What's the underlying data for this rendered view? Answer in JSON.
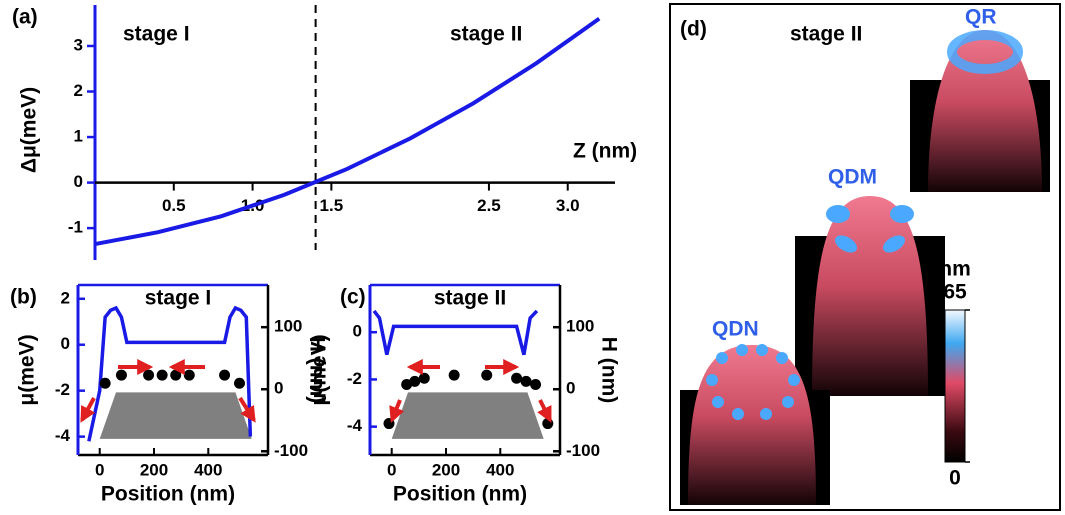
{
  "chart_data": [
    {
      "type": "line",
      "panel": "(a)",
      "annotations": [
        "stage I",
        "stage II"
      ],
      "xlabel": "Z (nm)",
      "ylabel": "Δμ(meV)",
      "x": [
        0,
        0.4,
        0.8,
        1.2,
        1.6,
        2.0,
        2.4,
        2.8,
        3.2
      ],
      "values": [
        -1.35,
        -1.09,
        -0.74,
        -0.27,
        0.3,
        0.97,
        1.74,
        2.62,
        3.6
      ],
      "color": "#1a1ae6",
      "xlim": [
        0,
        3.3
      ],
      "ylim": [
        -1.7,
        3.9
      ],
      "xticks": [
        0.5,
        {
          "value": 1,
          "label": "1.0"
        },
        1.5,
        2.5,
        {
          "value": 3,
          "label": "3.0"
        }
      ],
      "yticks": [
        -1,
        0,
        1,
        2,
        3
      ],
      "vline": 1.4
    },
    {
      "type": "line",
      "panel": "(b)",
      "title": "stage I",
      "xlabel": "Position (nm)",
      "ylabel": "μ(meV)",
      "y2label": "H (nm)",
      "xlim": [
        -80,
        620
      ],
      "xticks": [
        0,
        200,
        400
      ],
      "ylim": [
        -4.8,
        2.6
      ],
      "yticks": [
        -4,
        -2,
        0,
        2
      ],
      "y2lim": [
        -106,
        168
      ],
      "y2ticks": [
        -100,
        0,
        100
      ],
      "series": [
        {
          "type": "area",
          "color": "#808080",
          "axis": "y2",
          "x": [
            0,
            60,
            500,
            560
          ],
          "values": [
            -80,
            -5,
            -5,
            -80
          ]
        },
        {
          "type": "line",
          "color": "#1a1ae6",
          "x": [
            -40,
            0,
            20,
            40,
            60,
            80,
            100,
            460,
            480,
            500,
            520,
            540,
            555
          ],
          "values": [
            -4.2,
            -2,
            1.2,
            1.5,
            1.6,
            1.2,
            0.1,
            0.1,
            1.2,
            1.6,
            1.5,
            1.2,
            -4.0
          ]
        },
        {
          "type": "scatter",
          "color": "#000000",
          "axis": "y2",
          "x": [
            20,
            80,
            180,
            230,
            280,
            330,
            460,
            515
          ],
          "values": [
            0,
            13,
            13,
            13,
            13,
            13,
            13,
            0
          ]
        }
      ]
    },
    {
      "type": "line",
      "panel": "(c)",
      "title": "stage II",
      "xlabel": "Position (nm)",
      "ylabel": "μ(meV)",
      "y2label": "H (nm)",
      "xlim": [
        -80,
        620
      ],
      "xticks": [
        0,
        200,
        400
      ],
      "ylim": [
        -5.2,
        2.0
      ],
      "yticks": [
        -4,
        -2,
        0
      ],
      "y2lim": [
        -106,
        168
      ],
      "y2ticks": [
        -100,
        0,
        100
      ],
      "series": [
        {
          "type": "area",
          "color": "#808080",
          "axis": "y2",
          "x": [
            0,
            60,
            500,
            560
          ],
          "values": [
            -80,
            -5,
            -5,
            -80
          ]
        },
        {
          "type": "line",
          "color": "#1a1ae6",
          "x": [
            -65,
            -45,
            -18,
            7,
            460,
            487,
            510,
            535
          ],
          "values": [
            0.9,
            0.6,
            -0.95,
            0.25,
            0.25,
            -0.95,
            0.6,
            0.9
          ]
        },
        {
          "type": "scatter",
          "color": "#000000",
          "axis": "y2",
          "x": [
            -10,
            55,
            85,
            120,
            230,
            350,
            460,
            495,
            530,
            575
          ],
          "values": [
            -65,
            -2,
            3,
            8,
            13,
            13,
            8,
            3,
            -2,
            -65
          ]
        }
      ]
    }
  ],
  "panel_d": {
    "label": "(d)",
    "title": "stage II",
    "structures": [
      "QR",
      "QDM",
      "QDN"
    ],
    "colorbar": {
      "label": "nm",
      "ticks": [
        0,
        65
      ]
    }
  }
}
